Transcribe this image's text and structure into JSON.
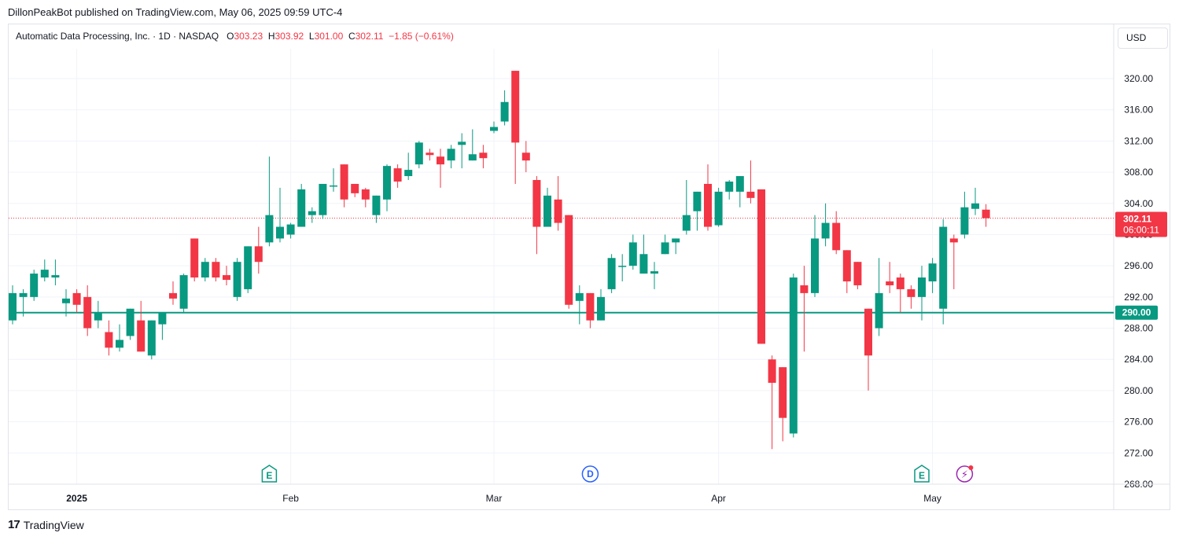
{
  "header": {
    "published_line": "DillonPeakBot published on TradingView.com, May 06, 2025 09:59 UTC-4"
  },
  "legend": {
    "symbol": "Automatic Data Processing, Inc. · 1D · NASDAQ",
    "o_label": "O",
    "o_value": "303.23",
    "h_label": "H",
    "h_value": "303.92",
    "l_label": "L",
    "l_value": "301.00",
    "c_label": "C",
    "c_value": "302.11",
    "change": "−1.85 (−0.61%)"
  },
  "currency_button": "USD",
  "footer": {
    "brand": "TradingView",
    "logo_glyph": "17"
  },
  "colors": {
    "up": "#089981",
    "down": "#f23645",
    "grid": "#f0f3fa",
    "axis_text": "#131722",
    "event_blue": "#2962ff",
    "event_purple": "#9c27b0"
  },
  "chart_data": {
    "type": "candlestick",
    "y_axis": {
      "min": 268,
      "max": 320,
      "ticks": [
        "320.00",
        "316.00",
        "312.00",
        "308.00",
        "304.00",
        "300.00",
        "296.00",
        "292.00",
        "288.00",
        "284.00",
        "280.00",
        "276.00",
        "272.00",
        "268.00"
      ],
      "side": "right"
    },
    "x_axis": {
      "labels": [
        {
          "text": "2025",
          "index": 6,
          "bold": true
        },
        {
          "text": "Feb",
          "index": 26,
          "bold": false
        },
        {
          "text": "Mar",
          "index": 45,
          "bold": false
        },
        {
          "text": "Apr",
          "index": 66,
          "bold": false
        },
        {
          "text": "May",
          "index": 86,
          "bold": false
        }
      ]
    },
    "last_price": {
      "value": 302.11,
      "label": "302.11",
      "countdown": "06:00:11"
    },
    "horizontal_line": {
      "value": 290.0,
      "label": "290.00",
      "color": "#089981"
    },
    "events": [
      {
        "type": "earnings",
        "glyph": "E",
        "index": 24
      },
      {
        "type": "dividend",
        "glyph": "D",
        "index": 54
      },
      {
        "type": "earnings",
        "glyph": "E",
        "index": 85
      },
      {
        "type": "flash",
        "glyph": "⚡",
        "index": 89
      }
    ],
    "candles": [
      {
        "o": 289.0,
        "h": 293.5,
        "l": 288.5,
        "c": 292.5
      },
      {
        "o": 292.0,
        "h": 293.0,
        "l": 289.5,
        "c": 292.5
      },
      {
        "o": 292.0,
        "h": 295.5,
        "l": 291.5,
        "c": 295.0
      },
      {
        "o": 294.5,
        "h": 296.8,
        "l": 294.0,
        "c": 295.5
      },
      {
        "o": 294.5,
        "h": 296.8,
        "l": 293.5,
        "c": 294.8
      },
      {
        "o": 291.2,
        "h": 293.0,
        "l": 289.5,
        "c": 291.8
      },
      {
        "o": 292.5,
        "h": 293.0,
        "l": 290.0,
        "c": 291.0
      },
      {
        "o": 292.0,
        "h": 293.5,
        "l": 287.0,
        "c": 288.0
      },
      {
        "o": 289.0,
        "h": 291.5,
        "l": 288.0,
        "c": 290.0
      },
      {
        "o": 287.5,
        "h": 289.0,
        "l": 284.5,
        "c": 285.5
      },
      {
        "o": 285.5,
        "h": 288.5,
        "l": 285.0,
        "c": 286.5
      },
      {
        "o": 287.0,
        "h": 290.5,
        "l": 286.5,
        "c": 290.5
      },
      {
        "o": 289.0,
        "h": 291.5,
        "l": 285.0,
        "c": 285.0
      },
      {
        "o": 284.5,
        "h": 289.0,
        "l": 284.0,
        "c": 289.0
      },
      {
        "o": 288.5,
        "h": 290.0,
        "l": 286.5,
        "c": 290.0
      },
      {
        "o": 292.5,
        "h": 294.0,
        "l": 291.0,
        "c": 291.8
      },
      {
        "o": 290.5,
        "h": 295.0,
        "l": 290.0,
        "c": 294.8
      },
      {
        "o": 299.5,
        "h": 299.5,
        "l": 294.0,
        "c": 294.5
      },
      {
        "o": 294.5,
        "h": 297.0,
        "l": 294.0,
        "c": 296.5
      },
      {
        "o": 296.5,
        "h": 297.0,
        "l": 294.0,
        "c": 294.5
      },
      {
        "o": 294.8,
        "h": 296.0,
        "l": 293.5,
        "c": 294.2
      },
      {
        "o": 292.0,
        "h": 297.0,
        "l": 291.5,
        "c": 296.5
      },
      {
        "o": 293.0,
        "h": 298.5,
        "l": 292.5,
        "c": 298.5
      },
      {
        "o": 298.5,
        "h": 301.0,
        "l": 295.0,
        "c": 296.5
      },
      {
        "o": 299.0,
        "h": 310.0,
        "l": 298.5,
        "c": 302.5
      },
      {
        "o": 299.5,
        "h": 306.0,
        "l": 299.0,
        "c": 301.0
      },
      {
        "o": 300.0,
        "h": 301.5,
        "l": 299.5,
        "c": 301.3
      },
      {
        "o": 301.0,
        "h": 306.5,
        "l": 301.0,
        "c": 305.8
      },
      {
        "o": 302.5,
        "h": 303.5,
        "l": 301.5,
        "c": 303.0
      },
      {
        "o": 302.5,
        "h": 306.5,
        "l": 302.0,
        "c": 306.5
      },
      {
        "o": 306.3,
        "h": 308.5,
        "l": 305.5,
        "c": 306.3
      },
      {
        "o": 309.0,
        "h": 309.0,
        "l": 303.5,
        "c": 304.5
      },
      {
        "o": 306.5,
        "h": 306.5,
        "l": 304.8,
        "c": 305.3
      },
      {
        "o": 305.8,
        "h": 306.0,
        "l": 303.5,
        "c": 304.5
      },
      {
        "o": 302.5,
        "h": 305.0,
        "l": 301.5,
        "c": 305.0
      },
      {
        "o": 304.5,
        "h": 309.0,
        "l": 303.0,
        "c": 308.8
      },
      {
        "o": 308.5,
        "h": 309.0,
        "l": 306.0,
        "c": 306.8
      },
      {
        "o": 307.5,
        "h": 310.5,
        "l": 307.0,
        "c": 308.3
      },
      {
        "o": 309.0,
        "h": 312.0,
        "l": 308.5,
        "c": 311.8
      },
      {
        "o": 310.5,
        "h": 311.0,
        "l": 309.5,
        "c": 310.2
      },
      {
        "o": 310.0,
        "h": 311.0,
        "l": 306.0,
        "c": 309.0
      },
      {
        "o": 309.5,
        "h": 311.5,
        "l": 308.5,
        "c": 311.0
      },
      {
        "o": 311.5,
        "h": 313.0,
        "l": 308.5,
        "c": 311.9
      },
      {
        "o": 309.5,
        "h": 313.5,
        "l": 309.5,
        "c": 310.3
      },
      {
        "o": 310.5,
        "h": 311.5,
        "l": 308.5,
        "c": 309.8
      },
      {
        "o": 313.3,
        "h": 314.5,
        "l": 313.0,
        "c": 313.8
      },
      {
        "o": 314.5,
        "h": 318.5,
        "l": 314.0,
        "c": 317.0
      },
      {
        "o": 321.0,
        "h": 321.0,
        "l": 306.5,
        "c": 311.8
      },
      {
        "o": 310.5,
        "h": 312.0,
        "l": 308.0,
        "c": 309.5
      },
      {
        "o": 307.0,
        "h": 307.5,
        "l": 297.5,
        "c": 301.0
      },
      {
        "o": 301.0,
        "h": 306.0,
        "l": 301.0,
        "c": 305.0
      },
      {
        "o": 304.5,
        "h": 307.5,
        "l": 300.5,
        "c": 301.5
      },
      {
        "o": 302.5,
        "h": 302.5,
        "l": 290.5,
        "c": 291.0
      },
      {
        "o": 291.5,
        "h": 293.5,
        "l": 288.5,
        "c": 292.5
      },
      {
        "o": 292.5,
        "h": 292.5,
        "l": 288.0,
        "c": 289.0
      },
      {
        "o": 289.0,
        "h": 293.0,
        "l": 289.0,
        "c": 292.0
      },
      {
        "o": 293.0,
        "h": 297.5,
        "l": 292.5,
        "c": 297.0
      },
      {
        "o": 296.0,
        "h": 297.5,
        "l": 294.0,
        "c": 296.0
      },
      {
        "o": 296.0,
        "h": 300.0,
        "l": 295.5,
        "c": 299.0
      },
      {
        "o": 295.0,
        "h": 300.0,
        "l": 295.0,
        "c": 297.5
      },
      {
        "o": 295.0,
        "h": 296.5,
        "l": 293.0,
        "c": 295.3
      },
      {
        "o": 297.5,
        "h": 300.0,
        "l": 297.5,
        "c": 299.0
      },
      {
        "o": 299.0,
        "h": 299.5,
        "l": 297.5,
        "c": 299.5
      },
      {
        "o": 300.5,
        "h": 307.0,
        "l": 300.0,
        "c": 302.5
      },
      {
        "o": 303.0,
        "h": 305.5,
        "l": 300.5,
        "c": 305.5
      },
      {
        "o": 306.5,
        "h": 309.0,
        "l": 300.5,
        "c": 301.0
      },
      {
        "o": 301.2,
        "h": 306.0,
        "l": 301.0,
        "c": 305.5
      },
      {
        "o": 305.5,
        "h": 307.0,
        "l": 304.5,
        "c": 306.8
      },
      {
        "o": 305.5,
        "h": 307.5,
        "l": 303.5,
        "c": 307.5
      },
      {
        "o": 305.5,
        "h": 309.5,
        "l": 304.0,
        "c": 304.7
      },
      {
        "o": 305.8,
        "h": 305.8,
        "l": 286.0,
        "c": 286.0
      },
      {
        "o": 284.0,
        "h": 284.5,
        "l": 272.5,
        "c": 281.0
      },
      {
        "o": 283.0,
        "h": 283.0,
        "l": 273.5,
        "c": 276.5
      },
      {
        "o": 274.5,
        "h": 295.0,
        "l": 274.0,
        "c": 294.5
      },
      {
        "o": 293.5,
        "h": 296.0,
        "l": 285.0,
        "c": 292.5
      },
      {
        "o": 292.5,
        "h": 302.5,
        "l": 292.0,
        "c": 299.5
      },
      {
        "o": 299.5,
        "h": 304.0,
        "l": 298.5,
        "c": 301.5
      },
      {
        "o": 301.5,
        "h": 303.0,
        "l": 297.5,
        "c": 298.0
      },
      {
        "o": 298.0,
        "h": 298.0,
        "l": 292.5,
        "c": 294.0
      },
      {
        "o": 296.5,
        "h": 296.5,
        "l": 293.0,
        "c": 293.5
      },
      {
        "o": 290.5,
        "h": 290.5,
        "l": 280.0,
        "c": 284.5
      },
      {
        "o": 288.0,
        "h": 297.0,
        "l": 287.0,
        "c": 292.5
      },
      {
        "o": 294.0,
        "h": 296.5,
        "l": 292.5,
        "c": 293.5
      },
      {
        "o": 294.5,
        "h": 295.0,
        "l": 290.0,
        "c": 293.0
      },
      {
        "o": 293.0,
        "h": 293.5,
        "l": 290.5,
        "c": 292.0
      },
      {
        "o": 292.0,
        "h": 296.0,
        "l": 289.0,
        "c": 294.5
      },
      {
        "o": 294.0,
        "h": 297.0,
        "l": 292.5,
        "c": 296.3
      },
      {
        "o": 290.5,
        "h": 302.0,
        "l": 288.5,
        "c": 301.0
      },
      {
        "o": 299.5,
        "h": 300.0,
        "l": 293.0,
        "c": 299.0
      },
      {
        "o": 300.0,
        "h": 305.5,
        "l": 299.5,
        "c": 303.5
      },
      {
        "o": 303.3,
        "h": 306.0,
        "l": 302.5,
        "c": 304.0
      },
      {
        "o": 303.2,
        "h": 303.9,
        "l": 301.0,
        "c": 302.1
      }
    ]
  }
}
